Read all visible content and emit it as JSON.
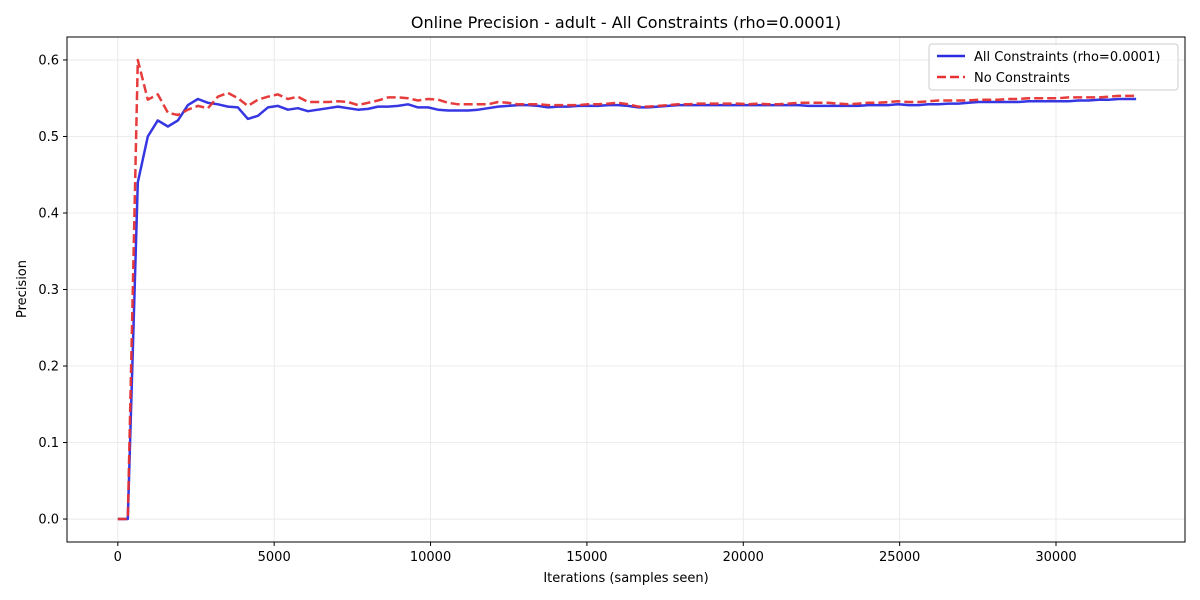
{
  "chart_data": {
    "type": "line",
    "title": "Online Precision - adult - All Constraints (rho=0.0001)",
    "xlabel": "Iterations (samples seen)",
    "ylabel": "Precision",
    "xlim": [
      -1625,
      34125
    ],
    "ylim": [
      -0.03,
      0.63
    ],
    "xticks": [
      0,
      5000,
      10000,
      15000,
      20000,
      25000,
      30000
    ],
    "yticks": [
      0.0,
      0.1,
      0.2,
      0.3,
      0.4,
      0.5,
      0.6
    ],
    "xtick_labels": [
      "0",
      "5000",
      "10000",
      "15000",
      "20000",
      "25000",
      "30000"
    ],
    "ytick_labels": [
      "0.0",
      "0.1",
      "0.2",
      "0.3",
      "0.4",
      "0.5",
      "0.6"
    ],
    "grid": true,
    "legend_position": "top-right",
    "series": [
      {
        "name": "All Constraints (rho=0.0001)",
        "color": "#2b2be0",
        "style": "solid",
        "x": [
          0,
          320,
          640,
          960,
          1280,
          1600,
          1920,
          2240,
          2560,
          2880,
          3200,
          3520,
          3840,
          4160,
          4480,
          4800,
          5120,
          5440,
          5760,
          6080,
          6400,
          6720,
          7040,
          7360,
          7680,
          8000,
          8320,
          8640,
          8960,
          9280,
          9600,
          9920,
          10240,
          10560,
          10880,
          11200,
          11520,
          11840,
          12160,
          12480,
          12800,
          13120,
          13440,
          13760,
          14080,
          14400,
          14720,
          15040,
          15360,
          15680,
          16000,
          16320,
          16640,
          16960,
          17280,
          17600,
          17920,
          18240,
          18560,
          18880,
          19200,
          19520,
          19840,
          20160,
          20480,
          20800,
          21120,
          21440,
          21760,
          22080,
          22400,
          22720,
          23040,
          23360,
          23680,
          24000,
          24320,
          24640,
          24960,
          25280,
          25600,
          25920,
          26240,
          26560,
          26880,
          27200,
          27520,
          27840,
          28160,
          28480,
          28800,
          29120,
          29440,
          29760,
          30080,
          30400,
          30720,
          31040,
          31360,
          31680,
          32000,
          32320,
          32560
        ],
        "y": [
          0.0,
          0.0,
          0.44,
          0.5,
          0.521,
          0.513,
          0.521,
          0.541,
          0.549,
          0.544,
          0.542,
          0.539,
          0.538,
          0.523,
          0.527,
          0.538,
          0.54,
          0.535,
          0.537,
          0.533,
          0.535,
          0.537,
          0.539,
          0.537,
          0.535,
          0.536,
          0.539,
          0.539,
          0.54,
          0.542,
          0.538,
          0.538,
          0.535,
          0.534,
          0.534,
          0.534,
          0.535,
          0.537,
          0.539,
          0.54,
          0.541,
          0.541,
          0.54,
          0.538,
          0.539,
          0.539,
          0.54,
          0.54,
          0.54,
          0.541,
          0.541,
          0.54,
          0.538,
          0.538,
          0.539,
          0.54,
          0.541,
          0.541,
          0.541,
          0.541,
          0.541,
          0.541,
          0.541,
          0.541,
          0.541,
          0.541,
          0.541,
          0.541,
          0.541,
          0.54,
          0.54,
          0.54,
          0.54,
          0.54,
          0.54,
          0.541,
          0.541,
          0.541,
          0.542,
          0.541,
          0.541,
          0.542,
          0.542,
          0.543,
          0.543,
          0.544,
          0.545,
          0.545,
          0.545,
          0.545,
          0.545,
          0.546,
          0.546,
          0.546,
          0.546,
          0.546,
          0.547,
          0.547,
          0.548,
          0.548,
          0.549,
          0.549,
          0.549
        ]
      },
      {
        "name": "No Constraints",
        "color": "#e63232",
        "style": "dashed",
        "x": [
          0,
          320,
          640,
          960,
          1280,
          1600,
          1920,
          2240,
          2560,
          2880,
          3200,
          3520,
          3840,
          4160,
          4480,
          4800,
          5120,
          5440,
          5760,
          6080,
          6400,
          6720,
          7040,
          7360,
          7680,
          8000,
          8320,
          8640,
          8960,
          9280,
          9600,
          9920,
          10240,
          10560,
          10880,
          11200,
          11520,
          11840,
          12160,
          12480,
          12800,
          13120,
          13440,
          13760,
          14080,
          14400,
          14720,
          15040,
          15360,
          15680,
          16000,
          16320,
          16640,
          16960,
          17280,
          17600,
          17920,
          18240,
          18560,
          18880,
          19200,
          19520,
          19840,
          20160,
          20480,
          20800,
          21120,
          21440,
          21760,
          22080,
          22400,
          22720,
          23040,
          23360,
          23680,
          24000,
          24320,
          24640,
          24960,
          25280,
          25600,
          25920,
          26240,
          26560,
          26880,
          27200,
          27520,
          27840,
          28160,
          28480,
          28800,
          29120,
          29440,
          29760,
          30080,
          30400,
          30720,
          31040,
          31360,
          31680,
          32000,
          32320,
          32560
        ],
        "y": [
          0.0,
          0.0,
          0.6,
          0.548,
          0.555,
          0.531,
          0.528,
          0.535,
          0.54,
          0.537,
          0.552,
          0.557,
          0.55,
          0.54,
          0.548,
          0.552,
          0.555,
          0.549,
          0.552,
          0.545,
          0.545,
          0.545,
          0.546,
          0.545,
          0.541,
          0.544,
          0.547,
          0.551,
          0.551,
          0.55,
          0.547,
          0.549,
          0.548,
          0.544,
          0.542,
          0.542,
          0.542,
          0.542,
          0.545,
          0.544,
          0.542,
          0.542,
          0.542,
          0.541,
          0.541,
          0.541,
          0.541,
          0.542,
          0.542,
          0.543,
          0.544,
          0.542,
          0.539,
          0.539,
          0.54,
          0.541,
          0.542,
          0.542,
          0.543,
          0.543,
          0.543,
          0.543,
          0.543,
          0.542,
          0.543,
          0.542,
          0.542,
          0.543,
          0.544,
          0.544,
          0.544,
          0.544,
          0.543,
          0.542,
          0.543,
          0.544,
          0.544,
          0.545,
          0.546,
          0.545,
          0.545,
          0.546,
          0.547,
          0.547,
          0.547,
          0.547,
          0.548,
          0.548,
          0.548,
          0.549,
          0.549,
          0.55,
          0.55,
          0.55,
          0.55,
          0.551,
          0.551,
          0.551,
          0.551,
          0.552,
          0.553,
          0.553,
          0.553
        ]
      }
    ]
  }
}
